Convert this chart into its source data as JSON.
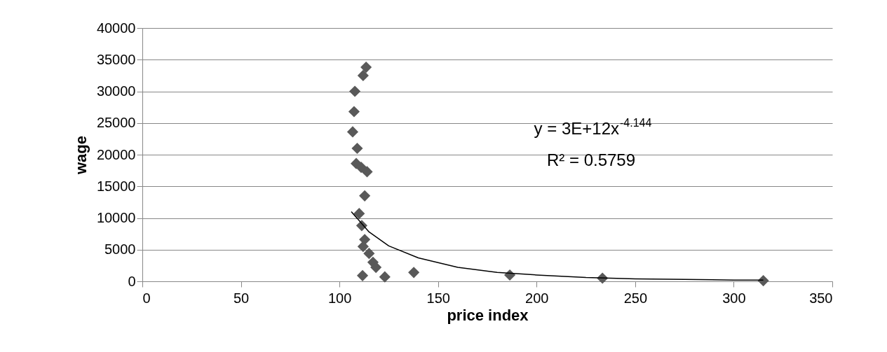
{
  "chart_data": {
    "type": "scatter",
    "xlabel": "price index",
    "ylabel": "wage",
    "xlim": [
      0,
      350
    ],
    "xticks": [
      0,
      50,
      100,
      150,
      200,
      250,
      300,
      350
    ],
    "ylim": [
      0,
      40000
    ],
    "yticks": [
      0,
      5000,
      10000,
      15000,
      20000,
      25000,
      30000,
      35000,
      40000
    ],
    "grid": "y",
    "marker": "diamond",
    "annotations": [
      "y = 3E+12x$^{-4.144}$",
      "R² = 0.5759"
    ],
    "series": [
      {
        "color": "#595959",
        "x": [
          113.5,
          112,
          107.8,
          107.4,
          106.7,
          109,
          108.5,
          111,
          114,
          112.8,
          110,
          111.3,
          112.8,
          112,
          115,
          117,
          118.5,
          123,
          111.7,
          137.7,
          186.4,
          233.4,
          315
        ],
        "values": [
          33800,
          32500,
          30000,
          26800,
          23600,
          21000,
          18600,
          18000,
          17300,
          13500,
          10700,
          8800,
          6600,
          5500,
          4400,
          3000,
          2200,
          700,
          900,
          1400,
          1000,
          500,
          100
        ]
      },
      {
        "type": "line",
        "color": "#000000",
        "marker": "none",
        "x": [
          106,
          115,
          125,
          140,
          160,
          180,
          200,
          225,
          250,
          275,
          300,
          315
        ],
        "values": [
          11000,
          7800,
          5600,
          3700,
          2200,
          1400,
          1000,
          600,
          400,
          300,
          200,
          200
        ]
      }
    ]
  }
}
